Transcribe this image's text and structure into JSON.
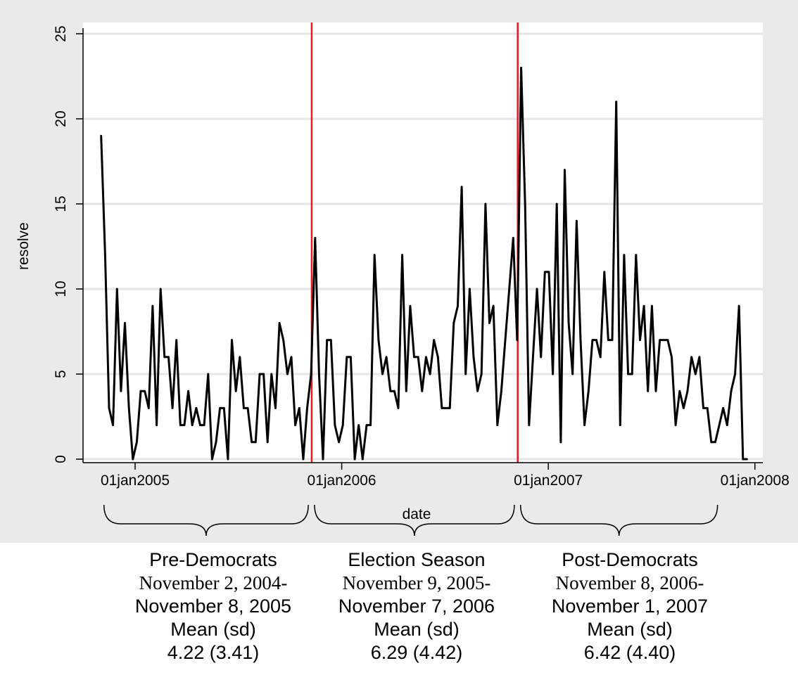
{
  "chart_data": {
    "type": "line",
    "title": "",
    "xlabel": "date",
    "ylabel": "resolve",
    "ylim": [
      0,
      25
    ],
    "yticks": [
      0,
      5,
      10,
      15,
      20,
      25
    ],
    "xlim": [
      "2004-10-01",
      "2008-01-15"
    ],
    "xticks": [
      {
        "date": "2005-01-01",
        "label": "01jan2005"
      },
      {
        "date": "2006-01-01",
        "label": "01jan2006"
      },
      {
        "date": "2007-01-01",
        "label": "01jan2007"
      },
      {
        "date": "2008-01-01",
        "label": "01jan2008"
      }
    ],
    "grid": true,
    "line_color": "#000000",
    "reference_line_color": "#e8191f",
    "reference_lines": [
      "2005-11-09",
      "2006-11-08"
    ],
    "series": [
      {
        "name": "",
        "points": [
          [
            "2004-11-02",
            19
          ],
          [
            "2004-11-09",
            12
          ],
          [
            "2004-11-16",
            3
          ],
          [
            "2004-11-23",
            2
          ],
          [
            "2004-11-30",
            10
          ],
          [
            "2004-12-07",
            4
          ],
          [
            "2004-12-14",
            8
          ],
          [
            "2004-12-21",
            3
          ],
          [
            "2004-12-28",
            0
          ],
          [
            "2005-01-04",
            1
          ],
          [
            "2005-01-11",
            4
          ],
          [
            "2005-01-18",
            4
          ],
          [
            "2005-01-25",
            3
          ],
          [
            "2005-02-01",
            9
          ],
          [
            "2005-02-08",
            2
          ],
          [
            "2005-02-15",
            10
          ],
          [
            "2005-02-22",
            6
          ],
          [
            "2005-03-01",
            6
          ],
          [
            "2005-03-08",
            3
          ],
          [
            "2005-03-15",
            7
          ],
          [
            "2005-03-22",
            2
          ],
          [
            "2005-03-29",
            2
          ],
          [
            "2005-04-05",
            4
          ],
          [
            "2005-04-12",
            2
          ],
          [
            "2005-04-19",
            3
          ],
          [
            "2005-04-26",
            2
          ],
          [
            "2005-05-03",
            2
          ],
          [
            "2005-05-10",
            5
          ],
          [
            "2005-05-17",
            0
          ],
          [
            "2005-05-24",
            1
          ],
          [
            "2005-05-31",
            3
          ],
          [
            "2005-06-07",
            3
          ],
          [
            "2005-06-14",
            0
          ],
          [
            "2005-06-21",
            7
          ],
          [
            "2005-06-28",
            4
          ],
          [
            "2005-07-05",
            6
          ],
          [
            "2005-07-12",
            3
          ],
          [
            "2005-07-19",
            3
          ],
          [
            "2005-07-26",
            1
          ],
          [
            "2005-08-02",
            1
          ],
          [
            "2005-08-09",
            5
          ],
          [
            "2005-08-16",
            5
          ],
          [
            "2005-08-23",
            1
          ],
          [
            "2005-08-30",
            5
          ],
          [
            "2005-09-06",
            3
          ],
          [
            "2005-09-13",
            8
          ],
          [
            "2005-09-20",
            7
          ],
          [
            "2005-09-27",
            5
          ],
          [
            "2005-10-04",
            6
          ],
          [
            "2005-10-11",
            2
          ],
          [
            "2005-10-18",
            3
          ],
          [
            "2005-10-25",
            0
          ],
          [
            "2005-11-01",
            3
          ],
          [
            "2005-11-08",
            5
          ],
          [
            "2005-11-15",
            13
          ],
          [
            "2005-11-22",
            5
          ],
          [
            "2005-11-29",
            0
          ],
          [
            "2005-12-06",
            7
          ],
          [
            "2005-12-13",
            7
          ],
          [
            "2005-12-20",
            2
          ],
          [
            "2005-12-27",
            1
          ],
          [
            "2006-01-03",
            2
          ],
          [
            "2006-01-10",
            6
          ],
          [
            "2006-01-17",
            6
          ],
          [
            "2006-01-24",
            0
          ],
          [
            "2006-01-31",
            2
          ],
          [
            "2006-02-07",
            0
          ],
          [
            "2006-02-14",
            2
          ],
          [
            "2006-02-21",
            2
          ],
          [
            "2006-02-28",
            12
          ],
          [
            "2006-03-07",
            7
          ],
          [
            "2006-03-14",
            5
          ],
          [
            "2006-03-21",
            6
          ],
          [
            "2006-03-28",
            4
          ],
          [
            "2006-04-04",
            4
          ],
          [
            "2006-04-11",
            3
          ],
          [
            "2006-04-18",
            12
          ],
          [
            "2006-04-25",
            4
          ],
          [
            "2006-05-02",
            9
          ],
          [
            "2006-05-09",
            6
          ],
          [
            "2006-05-16",
            6
          ],
          [
            "2006-05-23",
            4
          ],
          [
            "2006-05-30",
            6
          ],
          [
            "2006-06-06",
            5
          ],
          [
            "2006-06-13",
            7
          ],
          [
            "2006-06-20",
            6
          ],
          [
            "2006-06-27",
            3
          ],
          [
            "2006-07-04",
            3
          ],
          [
            "2006-07-11",
            3
          ],
          [
            "2006-07-18",
            8
          ],
          [
            "2006-07-25",
            9
          ],
          [
            "2006-08-01",
            16
          ],
          [
            "2006-08-08",
            5
          ],
          [
            "2006-08-15",
            10
          ],
          [
            "2006-08-22",
            6
          ],
          [
            "2006-08-29",
            4
          ],
          [
            "2006-09-05",
            5
          ],
          [
            "2006-09-12",
            15
          ],
          [
            "2006-09-19",
            8
          ],
          [
            "2006-09-26",
            9
          ],
          [
            "2006-10-03",
            2
          ],
          [
            "2006-10-10",
            4
          ],
          [
            "2006-10-17",
            7
          ],
          [
            "2006-10-24",
            10
          ],
          [
            "2006-10-31",
            13
          ],
          [
            "2006-11-07",
            7
          ],
          [
            "2006-11-14",
            23
          ],
          [
            "2006-11-21",
            15
          ],
          [
            "2006-11-28",
            2
          ],
          [
            "2006-12-05",
            6
          ],
          [
            "2006-12-12",
            10
          ],
          [
            "2006-12-19",
            6
          ],
          [
            "2006-12-26",
            11
          ],
          [
            "2007-01-02",
            11
          ],
          [
            "2007-01-09",
            5
          ],
          [
            "2007-01-16",
            15
          ],
          [
            "2007-01-23",
            1
          ],
          [
            "2007-01-30",
            17
          ],
          [
            "2007-02-06",
            8
          ],
          [
            "2007-02-13",
            5
          ],
          [
            "2007-02-20",
            14
          ],
          [
            "2007-02-27",
            7
          ],
          [
            "2007-03-06",
            2
          ],
          [
            "2007-03-13",
            4
          ],
          [
            "2007-03-20",
            7
          ],
          [
            "2007-03-27",
            7
          ],
          [
            "2007-04-03",
            6
          ],
          [
            "2007-04-10",
            11
          ],
          [
            "2007-04-17",
            7
          ],
          [
            "2007-04-24",
            7
          ],
          [
            "2007-05-01",
            21
          ],
          [
            "2007-05-08",
            2
          ],
          [
            "2007-05-15",
            12
          ],
          [
            "2007-05-22",
            5
          ],
          [
            "2007-05-29",
            5
          ],
          [
            "2007-06-05",
            12
          ],
          [
            "2007-06-12",
            7
          ],
          [
            "2007-06-19",
            9
          ],
          [
            "2007-06-26",
            4
          ],
          [
            "2007-07-03",
            9
          ],
          [
            "2007-07-10",
            4
          ],
          [
            "2007-07-17",
            7
          ],
          [
            "2007-07-24",
            7
          ],
          [
            "2007-07-31",
            7
          ],
          [
            "2007-08-07",
            6
          ],
          [
            "2007-08-14",
            2
          ],
          [
            "2007-08-21",
            4
          ],
          [
            "2007-08-28",
            3
          ],
          [
            "2007-09-04",
            4
          ],
          [
            "2007-09-11",
            6
          ],
          [
            "2007-09-18",
            5
          ],
          [
            "2007-09-25",
            6
          ],
          [
            "2007-10-02",
            3
          ],
          [
            "2007-10-09",
            3
          ],
          [
            "2007-10-16",
            1
          ],
          [
            "2007-10-23",
            1
          ],
          [
            "2007-10-30",
            2
          ],
          [
            "2007-11-06",
            3
          ],
          [
            "2007-11-13",
            2
          ],
          [
            "2007-11-20",
            4
          ],
          [
            "2007-11-27",
            5
          ],
          [
            "2007-12-04",
            9
          ],
          [
            "2007-12-11",
            0
          ],
          [
            "2007-12-18",
            0
          ]
        ]
      }
    ],
    "periods": [
      {
        "name": "Pre-Democrats",
        "dates_line1": "November 2, 2004-",
        "dates_line2": "November 8, 2005",
        "mean_label": "Mean (sd)",
        "stats": "4.22  (3.41)",
        "range": [
          "2004-11-02",
          "2005-11-08"
        ]
      },
      {
        "name": "Election Season",
        "dates_line1": "November 9, 2005-",
        "dates_line2": "November 7, 2006",
        "mean_label": "Mean (sd)",
        "stats": "6.29  (4.42)",
        "range": [
          "2005-11-09",
          "2006-11-07"
        ]
      },
      {
        "name": "Post-Democrats",
        "dates_line1": "November 8, 2006-",
        "dates_line2": "November 1, 2007",
        "mean_label": "Mean (sd)",
        "stats": "6.42 (4.40)",
        "range": [
          "2006-11-08",
          "2007-11-01"
        ]
      }
    ]
  }
}
